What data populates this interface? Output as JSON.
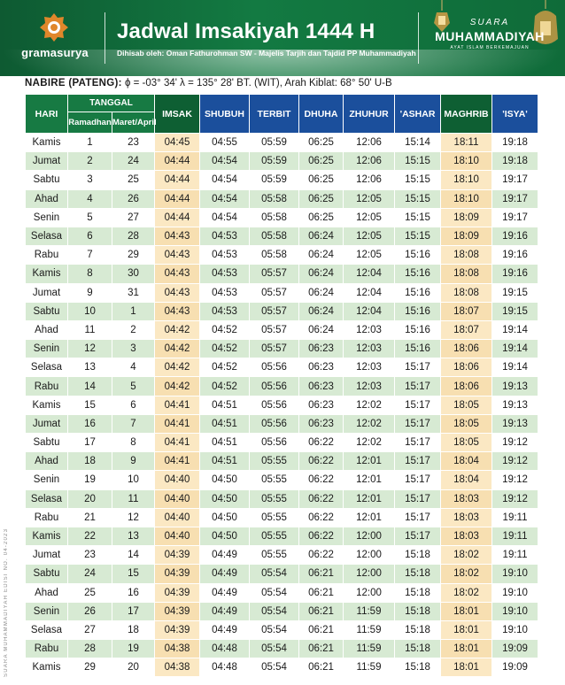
{
  "header": {
    "logo_text": "gramasurya",
    "title": "Jadwal Imsakiyah 1444 H",
    "subtitle": "Dihisab oleh: Oman Fathurohman SW - Majelis Tarjih dan Tajdid PP Muhammadiyah",
    "brand_line1": "SUARA",
    "brand_line2": "MUHAMMADIYAH",
    "brand_line3": "AYAT ISLAM BERKEMAJUAN",
    "colors": {
      "header_green": "#137a42",
      "table_green": "#177a43",
      "table_blue": "#1b4f9c",
      "highlight": "#fbe8c3",
      "alt_row": "#d7ead3"
    }
  },
  "location": {
    "name": "NABIRE (PATENG):",
    "coords": "ϕ = -03° 34'  λ = 135° 28'  BT. (WIT), Arah Kiblat: 68° 50' U-B"
  },
  "side_text": "SUARA MUHAMMADIYAH EDISI NO. 04-2023",
  "columns": {
    "hari": "HARI",
    "tanggal": "TANGGAL",
    "ramadhan": "Ramadhan",
    "maret_april": "Maret/April",
    "imsak": "IMSAK",
    "shubuh": "SHUBUH",
    "terbit": "TERBIT",
    "dhuha": "DHUHA",
    "zhuhur": "ZHUHUR",
    "ashar": "'ASHAR",
    "maghrib": "MAGHRIB",
    "isya": "'ISYA'"
  },
  "rows": [
    [
      "Kamis",
      "1",
      "23",
      "04:45",
      "04:55",
      "05:59",
      "06:25",
      "12:06",
      "15:14",
      "18:11",
      "19:18"
    ],
    [
      "Jumat",
      "2",
      "24",
      "04:44",
      "04:54",
      "05:59",
      "06:25",
      "12:06",
      "15:15",
      "18:10",
      "19:18"
    ],
    [
      "Sabtu",
      "3",
      "25",
      "04:44",
      "04:54",
      "05:59",
      "06:25",
      "12:06",
      "15:15",
      "18:10",
      "19:17"
    ],
    [
      "Ahad",
      "4",
      "26",
      "04:44",
      "04:54",
      "05:58",
      "06:25",
      "12:05",
      "15:15",
      "18:10",
      "19:17"
    ],
    [
      "Senin",
      "5",
      "27",
      "04:44",
      "04:54",
      "05:58",
      "06:25",
      "12:05",
      "15:15",
      "18:09",
      "19:17"
    ],
    [
      "Selasa",
      "6",
      "28",
      "04:43",
      "04:53",
      "05:58",
      "06:24",
      "12:05",
      "15:15",
      "18:09",
      "19:16"
    ],
    [
      "Rabu",
      "7",
      "29",
      "04:43",
      "04:53",
      "05:58",
      "06:24",
      "12:05",
      "15:16",
      "18:08",
      "19:16"
    ],
    [
      "Kamis",
      "8",
      "30",
      "04:43",
      "04:53",
      "05:57",
      "06:24",
      "12:04",
      "15:16",
      "18:08",
      "19:16"
    ],
    [
      "Jumat",
      "9",
      "31",
      "04:43",
      "04:53",
      "05:57",
      "06:24",
      "12:04",
      "15:16",
      "18:08",
      "19:15"
    ],
    [
      "Sabtu",
      "10",
      "1",
      "04:43",
      "04:53",
      "05:57",
      "06:24",
      "12:04",
      "15:16",
      "18:07",
      "19:15"
    ],
    [
      "Ahad",
      "11",
      "2",
      "04:42",
      "04:52",
      "05:57",
      "06:24",
      "12:03",
      "15:16",
      "18:07",
      "19:14"
    ],
    [
      "Senin",
      "12",
      "3",
      "04:42",
      "04:52",
      "05:57",
      "06:23",
      "12:03",
      "15:16",
      "18:06",
      "19:14"
    ],
    [
      "Selasa",
      "13",
      "4",
      "04:42",
      "04:52",
      "05:56",
      "06:23",
      "12:03",
      "15:17",
      "18:06",
      "19:14"
    ],
    [
      "Rabu",
      "14",
      "5",
      "04:42",
      "04:52",
      "05:56",
      "06:23",
      "12:03",
      "15:17",
      "18:06",
      "19:13"
    ],
    [
      "Kamis",
      "15",
      "6",
      "04:41",
      "04:51",
      "05:56",
      "06:23",
      "12:02",
      "15:17",
      "18:05",
      "19:13"
    ],
    [
      "Jumat",
      "16",
      "7",
      "04:41",
      "04:51",
      "05:56",
      "06:23",
      "12:02",
      "15:17",
      "18:05",
      "19:13"
    ],
    [
      "Sabtu",
      "17",
      "8",
      "04:41",
      "04:51",
      "05:56",
      "06:22",
      "12:02",
      "15:17",
      "18:05",
      "19:12"
    ],
    [
      "Ahad",
      "18",
      "9",
      "04:41",
      "04:51",
      "05:55",
      "06:22",
      "12:01",
      "15:17",
      "18:04",
      "19:12"
    ],
    [
      "Senin",
      "19",
      "10",
      "04:40",
      "04:50",
      "05:55",
      "06:22",
      "12:01",
      "15:17",
      "18:04",
      "19:12"
    ],
    [
      "Selasa",
      "20",
      "11",
      "04:40",
      "04:50",
      "05:55",
      "06:22",
      "12:01",
      "15:17",
      "18:03",
      "19:12"
    ],
    [
      "Rabu",
      "21",
      "12",
      "04:40",
      "04:50",
      "05:55",
      "06:22",
      "12:01",
      "15:17",
      "18:03",
      "19:11"
    ],
    [
      "Kamis",
      "22",
      "13",
      "04:40",
      "04:50",
      "05:55",
      "06:22",
      "12:00",
      "15:17",
      "18:03",
      "19:11"
    ],
    [
      "Jumat",
      "23",
      "14",
      "04:39",
      "04:49",
      "05:55",
      "06:22",
      "12:00",
      "15:18",
      "18:02",
      "19:11"
    ],
    [
      "Sabtu",
      "24",
      "15",
      "04:39",
      "04:49",
      "05:54",
      "06:21",
      "12:00",
      "15:18",
      "18:02",
      "19:10"
    ],
    [
      "Ahad",
      "25",
      "16",
      "04:39",
      "04:49",
      "05:54",
      "06:21",
      "12:00",
      "15:18",
      "18:02",
      "19:10"
    ],
    [
      "Senin",
      "26",
      "17",
      "04:39",
      "04:49",
      "05:54",
      "06:21",
      "11:59",
      "15:18",
      "18:01",
      "19:10"
    ],
    [
      "Selasa",
      "27",
      "18",
      "04:39",
      "04:49",
      "05:54",
      "06:21",
      "11:59",
      "15:18",
      "18:01",
      "19:10"
    ],
    [
      "Rabu",
      "28",
      "19",
      "04:38",
      "04:48",
      "05:54",
      "06:21",
      "11:59",
      "15:18",
      "18:01",
      "19:09"
    ],
    [
      "Kamis",
      "29",
      "20",
      "04:38",
      "04:48",
      "05:54",
      "06:21",
      "11:59",
      "15:18",
      "18:01",
      "19:09"
    ]
  ]
}
